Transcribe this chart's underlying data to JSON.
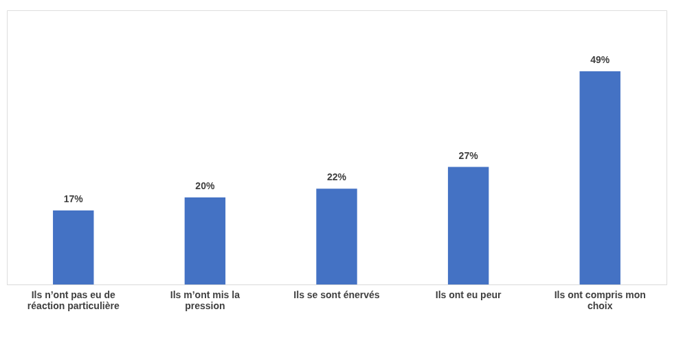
{
  "chart_data": {
    "type": "bar",
    "categories": [
      "Ils n’ont pas eu de réaction particulière",
      "Ils m’ont mis la pression",
      "Ils se sont énervés",
      "Ils ont eu peur",
      "Ils ont compris mon choix"
    ],
    "values": [
      17,
      20,
      22,
      27,
      49
    ],
    "value_labels": [
      "17%",
      "20%",
      "22%",
      "27%",
      "49%"
    ],
    "color": "#4472c4",
    "ylim": [
      0,
      63
    ],
    "tick_labels": "x",
    "grid": false
  }
}
